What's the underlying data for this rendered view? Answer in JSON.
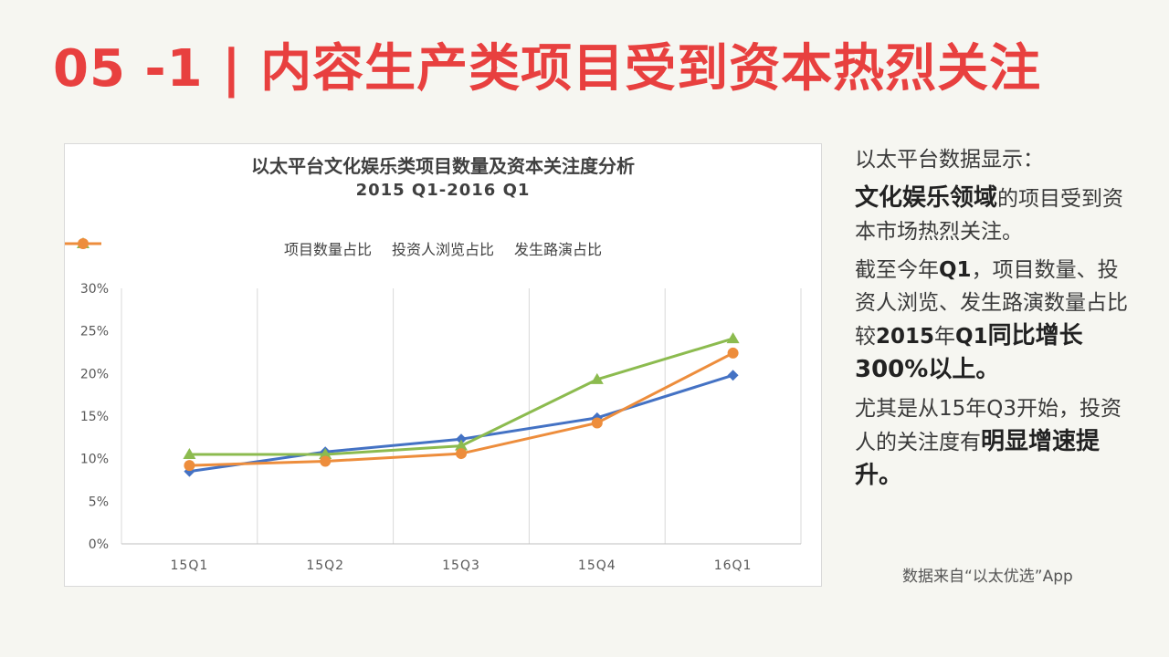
{
  "slide": {
    "title": "05 -1 | 内容生产类项目受到资本热烈关注"
  },
  "side": {
    "p1": "以太平台数据显示：",
    "p2_bold": "文化娱乐领域",
    "p2_rest": "的项目受到资本市场热烈关注。",
    "p3_a": "截至今年",
    "p3_b": "Q1",
    "p3_c": "，项目数量、投资人浏览、发生路演数量占比较",
    "p3_d": "2015",
    "p3_e": "年",
    "p3_f": "Q1",
    "p3_g": "同比增长300%以上。",
    "p4_a": "尤其是从15年Q3开始，投资人的关注度有",
    "p4_b": "明显增速提升。"
  },
  "source": "数据来自“以太优选”App",
  "chart_data": {
    "type": "line",
    "title": "以太平台文化娱乐类项目数量及资本关注度分析",
    "subtitle": "2015 Q1-2016 Q1",
    "categories": [
      "15Q1",
      "15Q2",
      "15Q3",
      "15Q4",
      "16Q1"
    ],
    "y_ticks": [
      "0%",
      "5%",
      "10%",
      "15%",
      "20%",
      "25%",
      "30%"
    ],
    "ylim": [
      0,
      30
    ],
    "grid": "vertical",
    "legend_position": "top",
    "series": [
      {
        "name": "项目数量占比",
        "color": "#4472c4",
        "marker": "diamond",
        "values": [
          8.5,
          10.8,
          12.3,
          14.8,
          19.8
        ]
      },
      {
        "name": "投资人浏览占比",
        "color": "#8cbb4f",
        "marker": "triangle",
        "values": [
          10.5,
          10.5,
          11.5,
          19.3,
          24.1
        ]
      },
      {
        "name": "发生路演占比",
        "color": "#ed8d3c",
        "marker": "circle",
        "values": [
          9.2,
          9.7,
          10.6,
          14.2,
          22.4
        ]
      }
    ]
  }
}
